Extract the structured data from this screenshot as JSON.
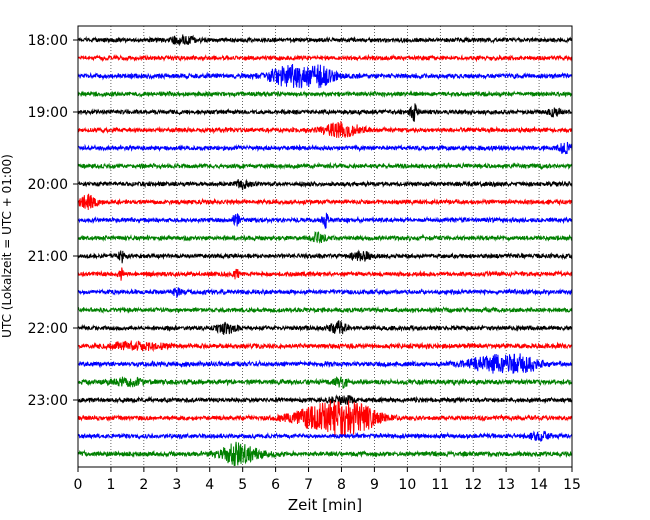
{
  "chart_data": {
    "type": "line",
    "title": "",
    "xlabel": "Zeit  [min]",
    "ylabel": "UTC (Lokalzeit = UTC + 01:00)",
    "xlim": [
      0,
      15
    ],
    "x_ticks": [
      0,
      1,
      2,
      3,
      4,
      5,
      6,
      7,
      8,
      9,
      10,
      11,
      12,
      13,
      14,
      15
    ],
    "y_tick_labels": [
      "18:00",
      "19:00",
      "20:00",
      "21:00",
      "22:00",
      "23:00"
    ],
    "vertical_grid": true,
    "grid_style": "dotted",
    "trace_interval_min": 15,
    "start_time": "18:00",
    "colors": [
      "#000000",
      "#ff0000",
      "#0000ff",
      "#008000"
    ],
    "traces": [
      {
        "label": "18:00",
        "color": "#000000",
        "noise": 0.9,
        "events": [
          {
            "x": 3.2,
            "amp": 1.6,
            "width": 0.4
          }
        ]
      },
      {
        "label": "18:15",
        "color": "#ff0000",
        "noise": 0.9,
        "events": []
      },
      {
        "label": "18:30",
        "color": "#0000ff",
        "noise": 1.0,
        "events": [
          {
            "x": 6.4,
            "amp": 4.5,
            "width": 0.6
          },
          {
            "x": 7.3,
            "amp": 4.0,
            "width": 0.5
          }
        ]
      },
      {
        "label": "18:45",
        "color": "#008000",
        "noise": 0.9,
        "events": []
      },
      {
        "label": "19:00",
        "color": "#000000",
        "noise": 0.9,
        "events": [
          {
            "x": 10.2,
            "amp": 3.5,
            "width": 0.1
          },
          {
            "x": 14.5,
            "amp": 2.0,
            "width": 0.2
          }
        ]
      },
      {
        "label": "19:15",
        "color": "#ff0000",
        "noise": 0.9,
        "events": [
          {
            "x": 8.0,
            "amp": 3.0,
            "width": 0.6
          }
        ]
      },
      {
        "label": "19:30",
        "color": "#0000ff",
        "noise": 0.9,
        "events": [
          {
            "x": 14.8,
            "amp": 2.0,
            "width": 0.2
          }
        ]
      },
      {
        "label": "19:45",
        "color": "#008000",
        "noise": 0.9,
        "events": []
      },
      {
        "label": "20:00",
        "color": "#000000",
        "noise": 0.9,
        "events": [
          {
            "x": 5.0,
            "amp": 1.8,
            "width": 0.2
          }
        ]
      },
      {
        "label": "20:15",
        "color": "#ff0000",
        "noise": 0.9,
        "events": [
          {
            "x": 0.3,
            "amp": 3.0,
            "width": 0.25
          }
        ]
      },
      {
        "label": "20:30",
        "color": "#0000ff",
        "noise": 0.9,
        "events": [
          {
            "x": 4.8,
            "amp": 2.5,
            "width": 0.1
          },
          {
            "x": 7.5,
            "amp": 3.0,
            "width": 0.1
          }
        ]
      },
      {
        "label": "20:45",
        "color": "#008000",
        "noise": 0.9,
        "events": [
          {
            "x": 7.3,
            "amp": 2.0,
            "width": 0.2
          }
        ]
      },
      {
        "label": "21:00",
        "color": "#000000",
        "noise": 0.9,
        "events": [
          {
            "x": 1.3,
            "amp": 3.0,
            "width": 0.08
          },
          {
            "x": 8.6,
            "amp": 1.8,
            "width": 0.3
          }
        ]
      },
      {
        "label": "21:15",
        "color": "#ff0000",
        "noise": 0.9,
        "events": [
          {
            "x": 1.3,
            "amp": 2.5,
            "width": 0.08
          },
          {
            "x": 4.8,
            "amp": 2.0,
            "width": 0.08
          }
        ]
      },
      {
        "label": "21:30",
        "color": "#0000ff",
        "noise": 0.9,
        "events": [
          {
            "x": 3.0,
            "amp": 2.0,
            "width": 0.1
          }
        ]
      },
      {
        "label": "21:45",
        "color": "#008000",
        "noise": 0.9,
        "events": []
      },
      {
        "label": "22:00",
        "color": "#000000",
        "noise": 0.9,
        "events": [
          {
            "x": 4.5,
            "amp": 2.2,
            "width": 0.3
          },
          {
            "x": 7.9,
            "amp": 2.5,
            "width": 0.25
          }
        ]
      },
      {
        "label": "22:15",
        "color": "#ff0000",
        "noise": 1.0,
        "events": [
          {
            "x": 1.8,
            "amp": 1.6,
            "width": 0.8
          }
        ]
      },
      {
        "label": "22:30",
        "color": "#0000ff",
        "noise": 1.0,
        "events": [
          {
            "x": 12.6,
            "amp": 3.5,
            "width": 0.7
          },
          {
            "x": 13.5,
            "amp": 3.0,
            "width": 0.5
          }
        ]
      },
      {
        "label": "22:45",
        "color": "#008000",
        "noise": 1.0,
        "events": [
          {
            "x": 1.5,
            "amp": 1.6,
            "width": 0.5
          },
          {
            "x": 8.0,
            "amp": 2.0,
            "width": 0.2
          }
        ]
      },
      {
        "label": "23:00",
        "color": "#000000",
        "noise": 0.9,
        "events": [
          {
            "x": 8.0,
            "amp": 1.6,
            "width": 0.4
          }
        ]
      },
      {
        "label": "23:15",
        "color": "#ff0000",
        "noise": 0.9,
        "events": [
          {
            "x": 7.2,
            "amp": 4.0,
            "width": 0.8
          },
          {
            "x": 8.0,
            "amp": 6.5,
            "width": 0.6
          },
          {
            "x": 8.8,
            "amp": 3.5,
            "width": 0.5
          }
        ]
      },
      {
        "label": "23:30",
        "color": "#0000ff",
        "noise": 0.9,
        "events": [
          {
            "x": 14.0,
            "amp": 1.8,
            "width": 0.3
          }
        ]
      },
      {
        "label": "23:45",
        "color": "#008000",
        "noise": 1.0,
        "events": [
          {
            "x": 5.0,
            "amp": 3.0,
            "width": 0.6
          },
          {
            "x": 4.7,
            "amp": 2.0,
            "width": 0.3
          }
        ]
      }
    ]
  }
}
